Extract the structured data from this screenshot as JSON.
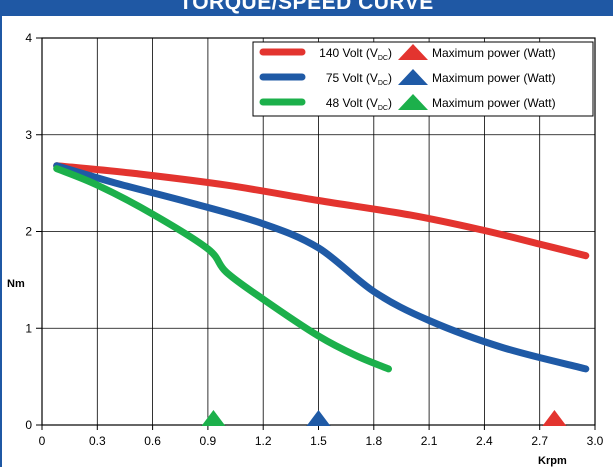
{
  "chart_data": {
    "type": "line",
    "title": "TORQUE/SPEED CURVE",
    "xlabel": "Krpm",
    "ylabel": "Nm",
    "xlim": [
      0,
      3.0
    ],
    "ylim": [
      0,
      4
    ],
    "x_ticks": [
      "0",
      "0.3",
      "0.6",
      "0.9",
      "1.2",
      "1.5",
      "1.8",
      "2.1",
      "2.4",
      "2.7",
      "3.0"
    ],
    "y_ticks": [
      "0",
      "1",
      "2",
      "3",
      "4"
    ],
    "grid": true,
    "legend_position": "top-right",
    "series": [
      {
        "name": "140 Volt (V",
        "name_sub": "DC",
        "name_tail": ")",
        "color": "#e3342f",
        "points": [
          [
            0.08,
            2.68
          ],
          [
            0.5,
            2.6
          ],
          [
            1.0,
            2.48
          ],
          [
            1.5,
            2.32
          ],
          [
            2.0,
            2.17
          ],
          [
            2.4,
            2.01
          ],
          [
            2.7,
            1.87
          ],
          [
            2.95,
            1.75
          ]
        ],
        "marker_name": "Maximum power (Watt)",
        "marker_x": 2.78
      },
      {
        "name": "75 Volt (V",
        "name_sub": "DC",
        "name_tail": ")",
        "color": "#1f5aa6",
        "points": [
          [
            0.08,
            2.68
          ],
          [
            0.4,
            2.5
          ],
          [
            0.8,
            2.3
          ],
          [
            1.2,
            2.08
          ],
          [
            1.5,
            1.83
          ],
          [
            1.8,
            1.38
          ],
          [
            2.1,
            1.08
          ],
          [
            2.5,
            0.8
          ],
          [
            2.95,
            0.58
          ]
        ],
        "marker_name": "Maximum power (Watt)",
        "marker_x": 1.5
      },
      {
        "name": "48 Volt (V",
        "name_sub": "DC",
        "name_tail": ")",
        "color": "#1cb04b",
        "points": [
          [
            0.08,
            2.65
          ],
          [
            0.3,
            2.48
          ],
          [
            0.6,
            2.18
          ],
          [
            0.9,
            1.82
          ],
          [
            1.0,
            1.58
          ],
          [
            1.2,
            1.3
          ],
          [
            1.5,
            0.92
          ],
          [
            1.7,
            0.72
          ],
          [
            1.88,
            0.58
          ]
        ],
        "marker_name": "Maximum power (Watt)",
        "marker_x": 0.93
      }
    ]
  }
}
